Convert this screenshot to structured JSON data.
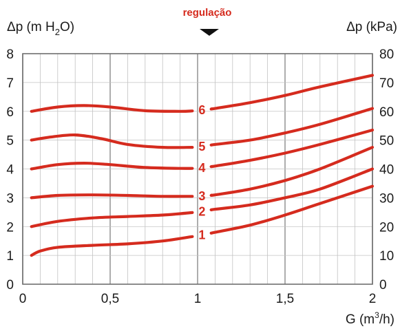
{
  "chart_data": {
    "type": "line",
    "xlabel": "G (m³/h)",
    "xlabel_parts": {
      "base": "G (m",
      "sup": "3",
      "tail": "/h)"
    },
    "ylabel_left": "Δp (m H₂O)",
    "ylabel_left_parts": {
      "base": "Δp (m H",
      "sub": "2",
      "tail": "O)"
    },
    "ylabel_right": "Δp (kPa)",
    "annotation": "regulação",
    "xlim": [
      0,
      2
    ],
    "ylim_left": [
      0,
      8
    ],
    "ylim_right": [
      0,
      80
    ],
    "x_ticks": [
      "0",
      "0,5",
      "1",
      "1,5",
      "2"
    ],
    "x_tick_values": [
      0,
      0.5,
      1,
      1.5,
      2
    ],
    "y_ticks_left": [
      "0",
      "1",
      "2",
      "3",
      "4",
      "5",
      "6",
      "7",
      "8"
    ],
    "y_ticks_right": [
      "0",
      "10",
      "20",
      "30",
      "40",
      "50",
      "60",
      "70",
      "80"
    ],
    "grid": true,
    "line_color": "#d52b1e",
    "gap_x": [
      0.97,
      1.08
    ],
    "series": [
      {
        "name": "1",
        "x": [
          0.05,
          0.1,
          0.2,
          0.4,
          0.6,
          0.8,
          1.0,
          1.1,
          1.3,
          1.5,
          1.7,
          2.0
        ],
        "y": [
          1.0,
          1.15,
          1.28,
          1.35,
          1.4,
          1.5,
          1.68,
          1.8,
          2.05,
          2.4,
          2.8,
          3.4
        ]
      },
      {
        "name": "2",
        "x": [
          0.05,
          0.2,
          0.4,
          0.6,
          0.8,
          1.0,
          1.1,
          1.3,
          1.5,
          1.7,
          2.0
        ],
        "y": [
          2.0,
          2.18,
          2.3,
          2.35,
          2.4,
          2.5,
          2.6,
          2.75,
          3.0,
          3.3,
          4.0
        ]
      },
      {
        "name": "3",
        "x": [
          0.05,
          0.2,
          0.4,
          0.6,
          0.8,
          1.0,
          1.1,
          1.3,
          1.5,
          1.7,
          2.0
        ],
        "y": [
          3.0,
          3.08,
          3.1,
          3.08,
          3.05,
          3.05,
          3.1,
          3.3,
          3.6,
          4.0,
          4.75
        ]
      },
      {
        "name": "4",
        "x": [
          0.05,
          0.2,
          0.35,
          0.5,
          0.7,
          0.9,
          1.0,
          1.1,
          1.3,
          1.5,
          1.7,
          2.0
        ],
        "y": [
          4.0,
          4.15,
          4.2,
          4.15,
          4.05,
          4.02,
          4.02,
          4.1,
          4.3,
          4.55,
          4.85,
          5.35
        ]
      },
      {
        "name": "5",
        "x": [
          0.05,
          0.15,
          0.3,
          0.45,
          0.6,
          0.8,
          1.0,
          1.1,
          1.3,
          1.5,
          1.7,
          2.0
        ],
        "y": [
          5.0,
          5.1,
          5.18,
          5.05,
          4.85,
          4.75,
          4.75,
          4.85,
          5.0,
          5.25,
          5.55,
          6.1
        ]
      },
      {
        "name": "6",
        "x": [
          0.05,
          0.2,
          0.35,
          0.5,
          0.7,
          0.9,
          1.0,
          1.1,
          1.3,
          1.5,
          1.7,
          2.0
        ],
        "y": [
          6.0,
          6.15,
          6.2,
          6.15,
          6.02,
          6.0,
          6.02,
          6.1,
          6.3,
          6.55,
          6.85,
          7.25
        ]
      }
    ]
  }
}
